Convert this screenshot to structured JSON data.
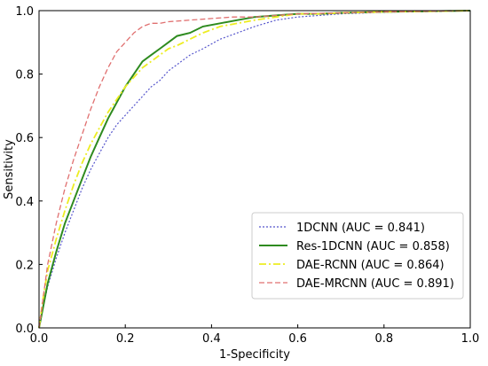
{
  "chart_data": {
    "type": "line",
    "xlabel": "1-Specificity",
    "ylabel": "Sensitivity",
    "xlim": [
      0.0,
      1.0
    ],
    "ylim": [
      0.0,
      1.0
    ],
    "x_ticks": [
      "0.0",
      "0.2",
      "0.4",
      "0.6",
      "0.8",
      "1.0"
    ],
    "y_ticks": [
      "0.0",
      "0.2",
      "0.4",
      "0.6",
      "0.8",
      "1.0"
    ],
    "grid": false,
    "legend_position": "bottom-right",
    "series": [
      {
        "name": "1DCNN (AUC = 0.841)",
        "color": "#5555cc",
        "style": "dotted",
        "points": [
          [
            0,
            0
          ],
          [
            0.01,
            0.07
          ],
          [
            0.02,
            0.13
          ],
          [
            0.04,
            0.22
          ],
          [
            0.06,
            0.3
          ],
          [
            0.08,
            0.37
          ],
          [
            0.1,
            0.44
          ],
          [
            0.12,
            0.5
          ],
          [
            0.14,
            0.55
          ],
          [
            0.16,
            0.6
          ],
          [
            0.18,
            0.64
          ],
          [
            0.2,
            0.67
          ],
          [
            0.22,
            0.7
          ],
          [
            0.24,
            0.73
          ],
          [
            0.26,
            0.76
          ],
          [
            0.28,
            0.78
          ],
          [
            0.3,
            0.81
          ],
          [
            0.32,
            0.83
          ],
          [
            0.35,
            0.86
          ],
          [
            0.38,
            0.88
          ],
          [
            0.42,
            0.91
          ],
          [
            0.46,
            0.93
          ],
          [
            0.5,
            0.95
          ],
          [
            0.55,
            0.97
          ],
          [
            0.6,
            0.98
          ],
          [
            0.65,
            0.985
          ],
          [
            0.7,
            0.99
          ],
          [
            0.8,
            0.995
          ],
          [
            0.9,
            0.998
          ],
          [
            1.0,
            1.0
          ]
        ]
      },
      {
        "name": "Res-1DCNN (AUC = 0.858)",
        "color": "#2e8b1f",
        "style": "solid",
        "points": [
          [
            0,
            0
          ],
          [
            0.01,
            0.07
          ],
          [
            0.02,
            0.14
          ],
          [
            0.04,
            0.24
          ],
          [
            0.06,
            0.33
          ],
          [
            0.08,
            0.4
          ],
          [
            0.1,
            0.47
          ],
          [
            0.12,
            0.54
          ],
          [
            0.14,
            0.6
          ],
          [
            0.16,
            0.66
          ],
          [
            0.18,
            0.71
          ],
          [
            0.2,
            0.76
          ],
          [
            0.22,
            0.8
          ],
          [
            0.24,
            0.84
          ],
          [
            0.26,
            0.86
          ],
          [
            0.28,
            0.88
          ],
          [
            0.3,
            0.9
          ],
          [
            0.32,
            0.92
          ],
          [
            0.35,
            0.93
          ],
          [
            0.38,
            0.95
          ],
          [
            0.42,
            0.96
          ],
          [
            0.46,
            0.97
          ],
          [
            0.5,
            0.98
          ],
          [
            0.55,
            0.985
          ],
          [
            0.6,
            0.99
          ],
          [
            0.65,
            0.99
          ],
          [
            0.7,
            0.993
          ],
          [
            0.8,
            0.996
          ],
          [
            0.9,
            0.998
          ],
          [
            1.0,
            1.0
          ]
        ]
      },
      {
        "name": "DAE-RCNN (AUC = 0.864)",
        "color": "#eded22",
        "style": "dashdot",
        "points": [
          [
            0,
            0
          ],
          [
            0.01,
            0.1
          ],
          [
            0.02,
            0.18
          ],
          [
            0.04,
            0.28
          ],
          [
            0.06,
            0.37
          ],
          [
            0.08,
            0.45
          ],
          [
            0.1,
            0.52
          ],
          [
            0.12,
            0.58
          ],
          [
            0.14,
            0.63
          ],
          [
            0.16,
            0.68
          ],
          [
            0.18,
            0.72
          ],
          [
            0.2,
            0.76
          ],
          [
            0.22,
            0.79
          ],
          [
            0.24,
            0.82
          ],
          [
            0.26,
            0.84
          ],
          [
            0.28,
            0.86
          ],
          [
            0.3,
            0.88
          ],
          [
            0.32,
            0.89
          ],
          [
            0.35,
            0.91
          ],
          [
            0.38,
            0.93
          ],
          [
            0.42,
            0.95
          ],
          [
            0.46,
            0.96
          ],
          [
            0.5,
            0.97
          ],
          [
            0.55,
            0.98
          ],
          [
            0.6,
            0.99
          ],
          [
            0.65,
            0.99
          ],
          [
            0.7,
            0.993
          ],
          [
            0.8,
            0.996
          ],
          [
            0.9,
            0.998
          ],
          [
            1.0,
            1.0
          ]
        ]
      },
      {
        "name": "DAE-MRCNN (AUC = 0.891)",
        "color": "#e07070",
        "style": "dashed",
        "points": [
          [
            0,
            0
          ],
          [
            0.01,
            0.1
          ],
          [
            0.02,
            0.2
          ],
          [
            0.04,
            0.33
          ],
          [
            0.06,
            0.44
          ],
          [
            0.08,
            0.53
          ],
          [
            0.1,
            0.61
          ],
          [
            0.12,
            0.69
          ],
          [
            0.14,
            0.76
          ],
          [
            0.16,
            0.82
          ],
          [
            0.18,
            0.87
          ],
          [
            0.2,
            0.9
          ],
          [
            0.22,
            0.93
          ],
          [
            0.24,
            0.95
          ],
          [
            0.26,
            0.96
          ],
          [
            0.28,
            0.96
          ],
          [
            0.3,
            0.965
          ],
          [
            0.35,
            0.97
          ],
          [
            0.4,
            0.975
          ],
          [
            0.45,
            0.98
          ],
          [
            0.5,
            0.98
          ],
          [
            0.55,
            0.985
          ],
          [
            0.6,
            0.99
          ],
          [
            0.7,
            0.993
          ],
          [
            0.8,
            0.996
          ],
          [
            0.9,
            0.998
          ],
          [
            1.0,
            1.0
          ]
        ]
      }
    ]
  }
}
